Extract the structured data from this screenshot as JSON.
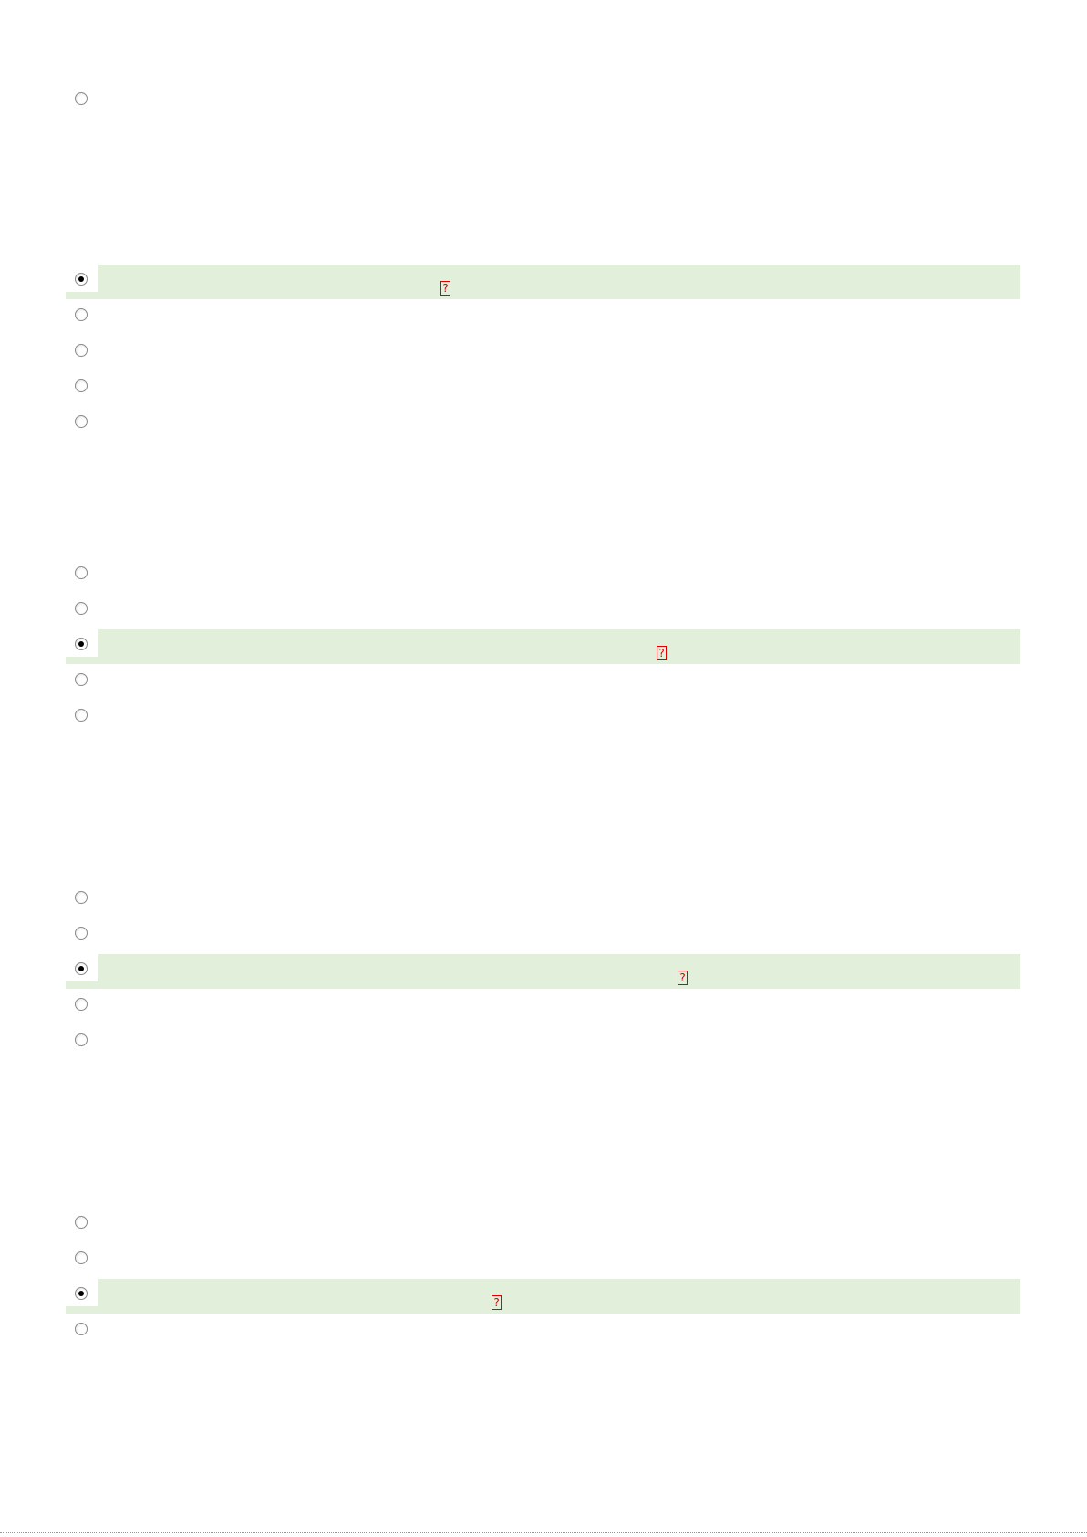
{
  "questions": [
    {
      "options": [
        {
          "selected": false
        }
      ]
    },
    {
      "options": [
        {
          "selected": true,
          "mark": "?"
        },
        {
          "selected": false
        },
        {
          "selected": false
        },
        {
          "selected": false
        },
        {
          "selected": false
        }
      ]
    },
    {
      "options": [
        {
          "selected": false
        },
        {
          "selected": false
        },
        {
          "selected": true,
          "mark": "?"
        },
        {
          "selected": false
        },
        {
          "selected": false
        }
      ]
    },
    {
      "options": [
        {
          "selected": false
        },
        {
          "selected": false
        },
        {
          "selected": true,
          "mark": "?"
        },
        {
          "selected": false
        },
        {
          "selected": false
        }
      ]
    },
    {
      "options": [
        {
          "selected": false
        },
        {
          "selected": false
        },
        {
          "selected": true,
          "mark": "?"
        },
        {
          "selected": false
        }
      ]
    }
  ]
}
